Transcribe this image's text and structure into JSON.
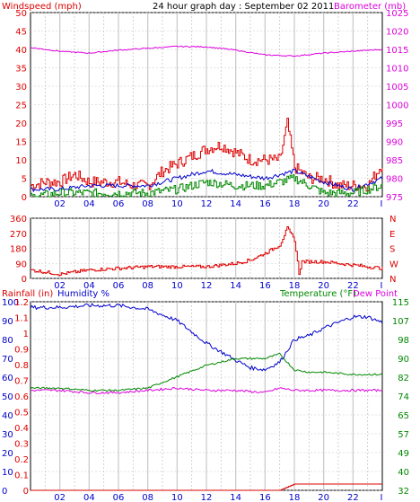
{
  "chart_data": [
    {
      "type": "line",
      "title": "24 hour graph day : September 02 2011",
      "left_label": "Windspeed (mph)",
      "right_label": "Barometer (mb)",
      "x_ticks": [
        "02",
        "04",
        "06",
        "08",
        "10",
        "12",
        "14",
        "16",
        "18",
        "20",
        "22",
        "I"
      ],
      "ylim": [
        0,
        50
      ],
      "y_ticks": [
        "0",
        "5",
        "10",
        "15",
        "20",
        "25",
        "30",
        "35",
        "40",
        "45",
        "50"
      ],
      "y2lim": [
        975,
        1025
      ],
      "y2_ticks": [
        "975",
        "980",
        "985",
        "990",
        "995",
        "1000",
        "1005",
        "1010",
        "1015",
        "1020",
        "1025"
      ],
      "series": [
        {
          "color": "#dd0000",
          "axis": "left",
          "hours": [
            0,
            1,
            2,
            3,
            4,
            5,
            6,
            7,
            8,
            9,
            10,
            11,
            12,
            13,
            14,
            15,
            16,
            17,
            17.5,
            18,
            19,
            20,
            21,
            22,
            23,
            24
          ],
          "values": [
            3,
            4,
            4,
            6,
            4,
            4,
            4,
            3,
            3,
            7,
            9,
            11,
            13,
            14,
            12,
            10,
            10,
            10,
            20,
            8,
            5,
            5,
            3,
            3,
            3,
            9
          ]
        },
        {
          "color": "#0000cc",
          "axis": "left",
          "hours": [
            0,
            2,
            4,
            6,
            8,
            10,
            12,
            14,
            16,
            18,
            20,
            22,
            24
          ],
          "values": [
            2,
            2,
            3,
            3,
            3,
            5,
            7,
            6,
            5,
            7,
            4,
            2,
            5
          ]
        },
        {
          "color": "#008800",
          "axis": "left",
          "hours": [
            0,
            2,
            4,
            6,
            8,
            10,
            12,
            14,
            16,
            18,
            20,
            22,
            24
          ],
          "values": [
            0,
            1,
            1,
            1,
            1,
            2,
            4,
            3,
            3,
            5,
            1,
            1,
            3
          ]
        },
        {
          "color": "#dd00dd",
          "axis": "right",
          "hours": [
            0,
            2,
            4,
            6,
            8,
            10,
            12,
            14,
            16,
            18,
            20,
            22,
            24
          ],
          "values": [
            1015.5,
            1014.5,
            1014,
            1014.8,
            1015.3,
            1015.8,
            1015.7,
            1014.8,
            1013.5,
            1013.2,
            1014,
            1014.5,
            1015
          ]
        }
      ]
    },
    {
      "type": "line",
      "title": "",
      "x_ticks": [
        "02",
        "04",
        "06",
        "08",
        "10",
        "12",
        "14",
        "16",
        "18",
        "20",
        "22",
        "I"
      ],
      "ylim": [
        0,
        360
      ],
      "y_ticks": [
        "0",
        "90",
        "180",
        "270",
        "360"
      ],
      "right_ticks": [
        "N",
        "E",
        "S",
        "W",
        "N"
      ],
      "series": [
        {
          "color": "#dd0000",
          "hours": [
            0,
            2,
            4,
            6,
            8,
            10,
            12,
            14,
            15,
            16,
            17,
            17.5,
            18,
            18.3,
            18.5,
            20,
            22,
            24
          ],
          "values": [
            50,
            25,
            50,
            60,
            70,
            70,
            70,
            90,
            110,
            150,
            200,
            300,
            230,
            30,
            100,
            100,
            80,
            60
          ]
        }
      ]
    },
    {
      "type": "line",
      "title": "",
      "left_label_1": "Rainfall (in)",
      "left_label_2": "Humidity %",
      "right_label_1": "Temperature (°F)",
      "right_label_2": "Dew Point",
      "x_ticks": [
        "02",
        "04",
        "06",
        "08",
        "10",
        "12",
        "14",
        "16",
        "18",
        "20",
        "22",
        "I"
      ],
      "rain_ticks": [
        "0",
        "0.1",
        "0.2",
        "0.3",
        "0.4",
        "0.5",
        "0.6",
        "0.7",
        "0.8",
        "0.9",
        "1",
        "1.1",
        "1.2"
      ],
      "humidity_ticks": [
        "0",
        "10",
        "20",
        "30",
        "40",
        "50",
        "60",
        "70",
        "80",
        "90",
        "100"
      ],
      "temp_ticks": [
        "32",
        "40",
        "49",
        "57",
        "65",
        "74",
        "82",
        "90",
        "98",
        "107",
        "115"
      ],
      "humidity_lim": [
        0,
        100
      ],
      "temp_lim": [
        32,
        115
      ],
      "series": [
        {
          "color": "#0000cc",
          "hours": [
            0,
            2,
            4,
            6,
            8,
            10,
            12,
            14,
            15,
            16,
            17,
            18,
            19,
            20,
            22,
            23,
            24
          ],
          "values": [
            97,
            97,
            98,
            98,
            96,
            90,
            78,
            69,
            65,
            64,
            68,
            80,
            82,
            86,
            92,
            92,
            89
          ]
        },
        {
          "color": "#008800",
          "hours": [
            0,
            2,
            4,
            6,
            8,
            10,
            12,
            14,
            16,
            17,
            18,
            19,
            20,
            22,
            24
          ],
          "values": [
            77,
            77,
            76,
            76,
            77,
            82,
            87,
            90,
            90,
            92,
            85,
            84,
            84,
            83,
            83
          ]
        },
        {
          "color": "#dd00dd",
          "hours": [
            0,
            2,
            4,
            6,
            8,
            10,
            12,
            14,
            16,
            17,
            18,
            20,
            22,
            24
          ],
          "values": [
            76,
            76,
            75,
            75,
            76,
            77,
            76,
            76,
            75,
            77,
            76,
            76,
            76,
            76
          ]
        },
        {
          "color": "#dd0000",
          "hours": [
            0,
            16,
            17,
            17.5,
            18,
            24
          ],
          "values": [
            0,
            0,
            0,
            0.02,
            0.04,
            0.04
          ]
        }
      ]
    }
  ],
  "colors": {
    "red": "#dd0000",
    "blue": "#0000cc",
    "green": "#008800",
    "magenta": "#dd00dd",
    "frame": "#000000",
    "grid": "#c8c8c8"
  }
}
